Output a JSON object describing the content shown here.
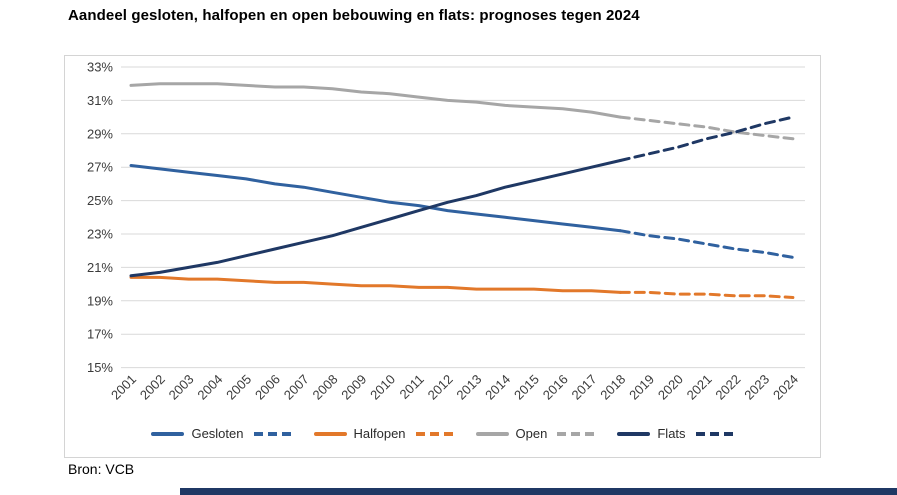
{
  "title": "Aandeel gesloten, halfopen en open bebouwing en flats: prognoses tegen 2024",
  "source": "Bron: VCB",
  "colors": {
    "gesloten": "#30619F",
    "halfopen": "#E2782A",
    "open": "#A6A6A6",
    "flats": "#1F3864",
    "grid": "#D9D9D9",
    "axis_text": "#3B3B3B",
    "footer_bar": "#1F3864"
  },
  "chart_data": {
    "type": "line",
    "title": "Aandeel gesloten, halfopen en open bebouwing en flats: prognoses tegen 2024",
    "x": [
      2001,
      2002,
      2003,
      2004,
      2005,
      2006,
      2007,
      2008,
      2009,
      2010,
      2011,
      2012,
      2013,
      2014,
      2015,
      2016,
      2017,
      2018,
      2019,
      2020,
      2021,
      2022,
      2023,
      2024
    ],
    "forecast_from_year": 2018,
    "style_note": "solid line = history 2001-2018, dashed line = prognosis 2018-2024",
    "y_axis": {
      "min": 15,
      "max": 33,
      "step": 2,
      "tick_suffix": "%"
    },
    "grid": true,
    "legend_position": "bottom",
    "series": [
      {
        "name": "Gesloten",
        "color_key": "gesloten",
        "values": [
          27.1,
          26.9,
          26.7,
          26.5,
          26.3,
          26.0,
          25.8,
          25.5,
          25.2,
          24.9,
          24.7,
          24.4,
          24.2,
          24.0,
          23.8,
          23.6,
          23.4,
          23.2,
          22.9,
          22.7,
          22.4,
          22.1,
          21.9,
          21.6
        ]
      },
      {
        "name": "Halfopen",
        "color_key": "halfopen",
        "values": [
          20.4,
          20.4,
          20.3,
          20.3,
          20.2,
          20.1,
          20.1,
          20.0,
          19.9,
          19.9,
          19.8,
          19.8,
          19.7,
          19.7,
          19.7,
          19.6,
          19.6,
          19.5,
          19.5,
          19.4,
          19.4,
          19.3,
          19.3,
          19.2
        ]
      },
      {
        "name": "Open",
        "color_key": "open",
        "values": [
          31.9,
          32.0,
          32.0,
          32.0,
          31.9,
          31.8,
          31.8,
          31.7,
          31.5,
          31.4,
          31.2,
          31.0,
          30.9,
          30.7,
          30.6,
          30.5,
          30.3,
          30.0,
          29.8,
          29.6,
          29.4,
          29.1,
          28.9,
          28.7
        ]
      },
      {
        "name": "Flats",
        "color_key": "flats",
        "values": [
          20.5,
          20.7,
          21.0,
          21.3,
          21.7,
          22.1,
          22.5,
          22.9,
          23.4,
          23.9,
          24.4,
          24.9,
          25.3,
          25.8,
          26.2,
          26.6,
          27.0,
          27.4,
          27.8,
          28.2,
          28.7,
          29.1,
          29.6,
          30.0
        ]
      }
    ]
  }
}
